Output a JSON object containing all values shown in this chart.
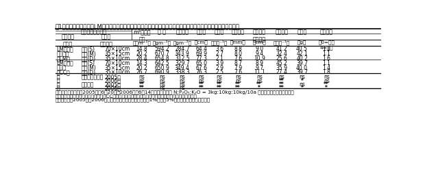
{
  "title": "表1　リビングマルチ（LM）と播種密度を組み合わせた大豆「タチナガハ」の収量，収量構成要素及び関連特性．",
  "header_row1_label": "処　　理（記号）",
  "header_m2": "m²当たり\n株数",
  "header_cols": [
    "全 重",
    "子実収量",
    "主茎長",
    "分枝数",
    "茎の太さ",
    "最下着莢\n主茎節高",
    "稔実莢数",
    "百粒重",
    "倒伏程度"
  ],
  "subheader_lm": "リビング\nマルチ",
  "subheader_seed": "大豆の\n播種密度",
  "units": [
    "（株m⁻²）",
    "（gm⁻²）",
    "（gm⁻²）",
    "（cm）",
    "（本株⁻¹）",
    "（mm）",
    "（cm）",
    "（個株⁻¹）",
    "（g）",
    "（0=無～\n4=甚）"
  ],
  "rows": [
    [
      "LMあり＋",
      "標準(S)",
      "70×10cm",
      "14.8",
      "594.2",
      "284.7",
      "64.4",
      "3.6",
      "8.8",
      "9.0",
      "41.2",
      "40.5",
      "1.1"
    ],
    [
      "無除草剤",
      "中間(M)",
      "35×15cm",
      "20.2",
      "670.7",
      "343.9",
      "69.9",
      "2.7",
      "8.0",
      "9.4",
      "32.4",
      "42.1",
      "1.1"
    ],
    [
      "（LM）",
      "密植(D)",
      "35×10cm",
      "28.4",
      "654.8",
      "312.5",
      "77.3",
      "2.1",
      "7.6",
      "10.9",
      "25.6",
      "40.2",
      "1.6"
    ],
    [
      "LMなし＋",
      "標準(S)",
      "70×10cm",
      "14.3",
      "642.5",
      "329.7",
      "65.0",
      "3.9",
      "8.7",
      "8.9",
      "45.2",
      "39.7",
      "1.1"
    ],
    [
      "除草剤",
      "中間(M)",
      "35×15cm",
      "20.2",
      "650.9",
      "349.4",
      "67.6",
      "2.9",
      "7.9",
      "9.7",
      "35.9",
      "40.0",
      "1.4"
    ],
    [
      "（CC）",
      "密植(D)",
      "35×10cm",
      "26.7",
      "690.9",
      "338.3",
      "76.3",
      "2.5",
      "7.6",
      "11.1",
      "27.4",
      "39.7",
      "1.8"
    ]
  ],
  "anova_side": [
    "分",
    "散",
    "分",
    "析"
  ],
  "anova_factor1": "リビングマルチ",
  "anova_factor2": "播種密度",
  "anova_rows": [
    [
      "2005年",
      "ns",
      "ns",
      "ns",
      "ns",
      "ns",
      "ns",
      "ns",
      "ns",
      "ns",
      "ns"
    ],
    [
      "2006年",
      "ns",
      "ns",
      "ns",
      "ns",
      "ns",
      "ns",
      "ns",
      "**",
      "*",
      "ns"
    ],
    [
      "2005年",
      "**",
      "ns",
      "ns",
      "**",
      "**",
      "**",
      "**",
      "**",
      "ns",
      "**"
    ],
    [
      "2006年",
      "**",
      "ns",
      "ns",
      "**",
      "**",
      "**",
      "*",
      "**",
      "*",
      "*"
    ]
  ],
  "footnote_lines": [
    "注：大豆の播種日は2005年が6月20日，2006年が6月14日．基肥として N:P₂O₅:K₂O = 3kg:10kg:10kg/10a を施用，無中耕・無培土．",
    "　　リビングマルチを利用しない区（CC）は大豆播種時に土壌処理除草剤（トリフルラリン）を使用．",
    "　　データは2005年と2006年の平均値，分散分析欄で＊＊は1%，＊は5%で有意差あり（年次別）．"
  ],
  "bg_color": "#ffffff"
}
